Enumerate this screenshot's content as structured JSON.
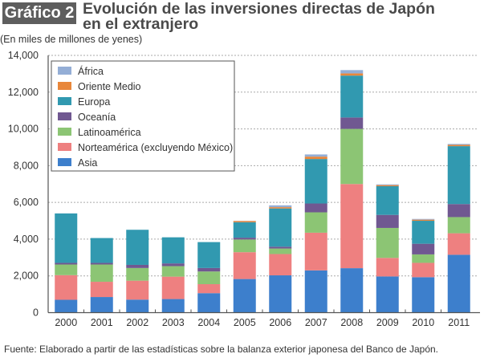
{
  "header": {
    "badge": "Gráfico 2",
    "title_line1": "Evolución de las inversiones directas de Japón",
    "title_line2": "en el extranjero"
  },
  "unit_note": "(En miles de millones de yenes)",
  "source_note": "Fuente: Elaborado a partir de las estadísticas sobre la balanza exterior japonesa del Banco de Japón.",
  "chart_data": {
    "type": "bar",
    "stacked": true,
    "title": "Evolución de las inversiones directas de Japón en el extranjero",
    "xlabel": "",
    "ylabel": "(En miles de millones de yenes)",
    "ylim": [
      0,
      14000
    ],
    "yticks": [
      0,
      2000,
      4000,
      6000,
      8000,
      10000,
      12000,
      14000
    ],
    "ytick_labels": [
      "0",
      "2,000",
      "4,000",
      "6,000",
      "8,000",
      "10,000",
      "12,000",
      "14,000"
    ],
    "grid": "horizontal dashed",
    "legend_position": "top-left",
    "categories": [
      "2000",
      "2001",
      "2002",
      "2003",
      "2004",
      "2005",
      "2006",
      "2007",
      "2008",
      "2009",
      "2010",
      "2011"
    ],
    "series": [
      {
        "name": "Asia",
        "color": "#3d7fcc",
        "values": [
          700,
          850,
          710,
          740,
          1060,
          1830,
          2030,
          2300,
          2420,
          1970,
          1930,
          3150
        ]
      },
      {
        "name": "Norteamérica (excluyendo México)",
        "color": "#ee8080",
        "values": [
          1340,
          830,
          1030,
          1220,
          490,
          1460,
          1160,
          2050,
          4580,
          1010,
          780,
          1170
        ]
      },
      {
        "name": "Latinoamérica",
        "color": "#8cc574",
        "values": [
          580,
          940,
          690,
          570,
          690,
          690,
          300,
          1110,
          3000,
          1630,
          460,
          880
        ]
      },
      {
        "name": "Oceanía",
        "color": "#705891",
        "values": [
          90,
          90,
          170,
          150,
          190,
          100,
          100,
          480,
          620,
          710,
          580,
          710
        ]
      },
      {
        "name": "Europa",
        "color": "#3199b0",
        "values": [
          2690,
          1350,
          1910,
          1420,
          1410,
          840,
          2080,
          2420,
          2280,
          1560,
          1250,
          3150
        ]
      },
      {
        "name": "Oriente Medio",
        "color": "#e8873b",
        "values": [
          0,
          0,
          0,
          0,
          0,
          70,
          70,
          130,
          120,
          60,
          60,
          70
        ]
      },
      {
        "name": "África",
        "color": "#94aed6",
        "values": [
          0,
          0,
          0,
          0,
          0,
          10,
          100,
          120,
          180,
          40,
          40,
          50
        ]
      }
    ],
    "legend_order": [
      "África",
      "Oriente Medio",
      "Europa",
      "Oceanía",
      "Latinoamérica",
      "Norteamérica (excluyendo México)",
      "Asia"
    ]
  }
}
